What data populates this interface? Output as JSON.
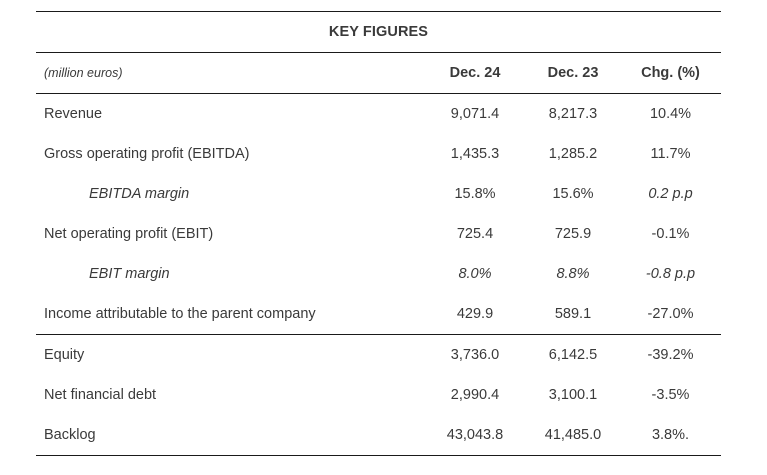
{
  "title": "KEY FIGURES",
  "header": {
    "unit_label": "(million euros)",
    "col1": "Dec. 24",
    "col2": "Dec. 23",
    "col3": "Chg. (%)"
  },
  "rows_section1": [
    {
      "label": "Revenue",
      "dec24": "9,071.4",
      "dec23": "8,217.3",
      "chg": "10.4%",
      "italic_label": false,
      "italic_values": false
    },
    {
      "label": "Gross operating profit (EBITDA)",
      "dec24": "1,435.3",
      "dec23": "1,285.2",
      "chg": "11.7%",
      "italic_label": false,
      "italic_values": false
    },
    {
      "label": "EBITDA margin",
      "dec24": "15.8%",
      "dec23": "15.6%",
      "chg": "0.2 p.p",
      "italic_label": true,
      "italic_values": false,
      "italic_chg": true
    },
    {
      "label": "Net operating profit (EBIT)",
      "dec24": "725.4",
      "dec23": "725.9",
      "chg": "-0.1%",
      "italic_label": false,
      "italic_values": false
    },
    {
      "label": "EBIT margin",
      "dec24": "8.0%",
      "dec23": "8.8%",
      "chg": "-0.8 p.p",
      "italic_label": true,
      "italic_values": true,
      "italic_chg": true
    },
    {
      "label": "Income attributable to the parent company",
      "dec24": "429.9",
      "dec23": "589.1",
      "chg": "-27.0%",
      "italic_label": false,
      "italic_values": false
    }
  ],
  "rows_section2": [
    {
      "label": "Equity",
      "dec24": "3,736.0",
      "dec23": "6,142.5",
      "chg": "-39.2%"
    },
    {
      "label": "Net financial debt",
      "dec24": "2,990.4",
      "dec23": "3,100.1",
      "chg": "-3.5%"
    },
    {
      "label": "Backlog",
      "dec24": "43,043.8",
      "dec23": "41,485.0",
      "chg": "3.8%."
    }
  ]
}
